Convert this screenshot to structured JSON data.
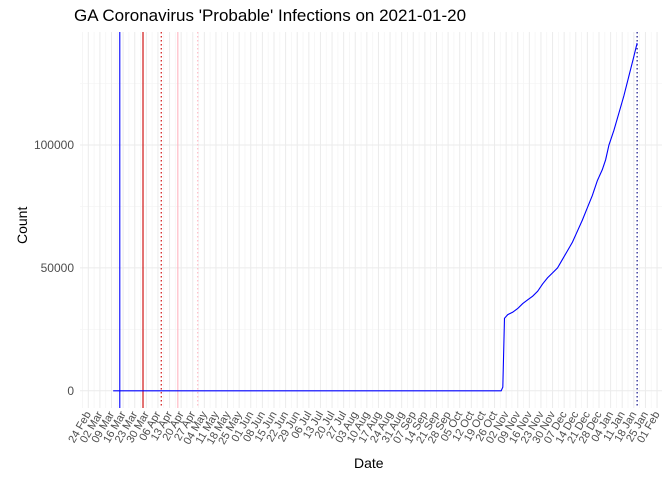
{
  "chart_data": {
    "type": "line",
    "title": "GA Coronavirus 'Probable' Infections on 2021-01-20",
    "xlabel": "Date",
    "ylabel": "Count",
    "x_type": "date",
    "xlim": [
      "2020-02-19",
      "2021-02-04"
    ],
    "ylim": [
      -7000,
      146000
    ],
    "grid": true,
    "y_ticks": [
      {
        "value": 0,
        "label": "0"
      },
      {
        "value": 50000,
        "label": "50000"
      },
      {
        "value": 100000,
        "label": "100000"
      }
    ],
    "x_ticks": [
      {
        "date": "2020-02-24",
        "label": "24 Feb"
      },
      {
        "date": "2020-03-02",
        "label": "02 Mar"
      },
      {
        "date": "2020-03-09",
        "label": "09 Mar"
      },
      {
        "date": "2020-03-16",
        "label": "16 Mar"
      },
      {
        "date": "2020-03-23",
        "label": "23 Mar"
      },
      {
        "date": "2020-03-30",
        "label": "30 Mar"
      },
      {
        "date": "2020-04-06",
        "label": "06 Apr"
      },
      {
        "date": "2020-04-13",
        "label": "13 Apr"
      },
      {
        "date": "2020-04-20",
        "label": "20 Apr"
      },
      {
        "date": "2020-04-27",
        "label": "27 Apr"
      },
      {
        "date": "2020-05-04",
        "label": "04 May"
      },
      {
        "date": "2020-05-11",
        "label": "11 May"
      },
      {
        "date": "2020-05-18",
        "label": "18 May"
      },
      {
        "date": "2020-05-25",
        "label": "25 May"
      },
      {
        "date": "2020-06-01",
        "label": "01 Jun"
      },
      {
        "date": "2020-06-08",
        "label": "08 Jun"
      },
      {
        "date": "2020-06-15",
        "label": "15 Jun"
      },
      {
        "date": "2020-06-22",
        "label": "22 Jun"
      },
      {
        "date": "2020-06-29",
        "label": "29 Jun"
      },
      {
        "date": "2020-07-06",
        "label": "06 Jul"
      },
      {
        "date": "2020-07-13",
        "label": "13 Jul"
      },
      {
        "date": "2020-07-20",
        "label": "20 Jul"
      },
      {
        "date": "2020-07-27",
        "label": "27 Jul"
      },
      {
        "date": "2020-08-03",
        "label": "03 Aug"
      },
      {
        "date": "2020-08-10",
        "label": "10 Aug"
      },
      {
        "date": "2020-08-17",
        "label": "17 Aug"
      },
      {
        "date": "2020-08-24",
        "label": "24 Aug"
      },
      {
        "date": "2020-08-31",
        "label": "31 Aug"
      },
      {
        "date": "2020-09-07",
        "label": "07 Sep"
      },
      {
        "date": "2020-09-14",
        "label": "14 Sep"
      },
      {
        "date": "2020-09-21",
        "label": "21 Sep"
      },
      {
        "date": "2020-09-28",
        "label": "28 Sep"
      },
      {
        "date": "2020-10-05",
        "label": "05 Oct"
      },
      {
        "date": "2020-10-12",
        "label": "12 Oct"
      },
      {
        "date": "2020-10-19",
        "label": "19 Oct"
      },
      {
        "date": "2020-10-26",
        "label": "26 Oct"
      },
      {
        "date": "2020-11-02",
        "label": "02 Nov"
      },
      {
        "date": "2020-11-09",
        "label": "09 Nov"
      },
      {
        "date": "2020-11-16",
        "label": "16 Nov"
      },
      {
        "date": "2020-11-23",
        "label": "23 Nov"
      },
      {
        "date": "2020-11-30",
        "label": "30 Nov"
      },
      {
        "date": "2020-12-07",
        "label": "07 Dec"
      },
      {
        "date": "2020-12-14",
        "label": "14 Dec"
      },
      {
        "date": "2020-12-21",
        "label": "21 Dec"
      },
      {
        "date": "2020-12-28",
        "label": "28 Dec"
      },
      {
        "date": "2021-01-04",
        "label": "04 Jan"
      },
      {
        "date": "2021-01-11",
        "label": "11 Jan"
      },
      {
        "date": "2021-01-18",
        "label": "18 Jan"
      },
      {
        "date": "2021-01-25",
        "label": "25 Jan"
      },
      {
        "date": "2021-02-01",
        "label": "01 Feb"
      }
    ],
    "reference_lines": [
      {
        "date": "2020-03-14",
        "color": "#0000ff",
        "style": "solid"
      },
      {
        "date": "2020-03-28",
        "color": "#cc0000",
        "style": "solid"
      },
      {
        "date": "2020-04-08",
        "color": "#cc0000",
        "style": "dotted"
      },
      {
        "date": "2020-04-18",
        "color": "#ffb6c1",
        "style": "solid"
      },
      {
        "date": "2020-04-30",
        "color": "#ffb6c1",
        "style": "dotted"
      },
      {
        "date": "2021-01-20",
        "color": "#000080",
        "style": "dotted"
      }
    ],
    "series": [
      {
        "color": "#0000ff",
        "points": [
          [
            "2020-03-10",
            0
          ],
          [
            "2020-10-30",
            0
          ],
          [
            "2020-10-31",
            1500
          ],
          [
            "2020-11-01",
            29500
          ],
          [
            "2020-11-03",
            31000
          ],
          [
            "2020-11-06",
            32000
          ],
          [
            "2020-11-09",
            33500
          ],
          [
            "2020-11-12",
            35500
          ],
          [
            "2020-11-15",
            37000
          ],
          [
            "2020-11-18",
            38500
          ],
          [
            "2020-11-21",
            40500
          ],
          [
            "2020-11-24",
            43500
          ],
          [
            "2020-11-27",
            46000
          ],
          [
            "2020-11-30",
            48000
          ],
          [
            "2020-12-03",
            50000
          ],
          [
            "2020-12-06",
            53500
          ],
          [
            "2020-12-09",
            57000
          ],
          [
            "2020-12-12",
            60500
          ],
          [
            "2020-12-15",
            65000
          ],
          [
            "2020-12-18",
            69500
          ],
          [
            "2020-12-21",
            74500
          ],
          [
            "2020-12-24",
            79500
          ],
          [
            "2020-12-27",
            85500
          ],
          [
            "2020-12-30",
            90000
          ],
          [
            "2021-01-01",
            94000
          ],
          [
            "2021-01-03",
            100000
          ],
          [
            "2021-01-06",
            106000
          ],
          [
            "2021-01-09",
            113000
          ],
          [
            "2021-01-12",
            120000
          ],
          [
            "2021-01-15",
            128000
          ],
          [
            "2021-01-18",
            136000
          ],
          [
            "2021-01-20",
            141500
          ]
        ]
      }
    ],
    "colors": {
      "panel_grid_major": "#ebebeb",
      "panel_grid_minor": "#f5f5f5",
      "tick_label": "#4d4d4d"
    }
  }
}
